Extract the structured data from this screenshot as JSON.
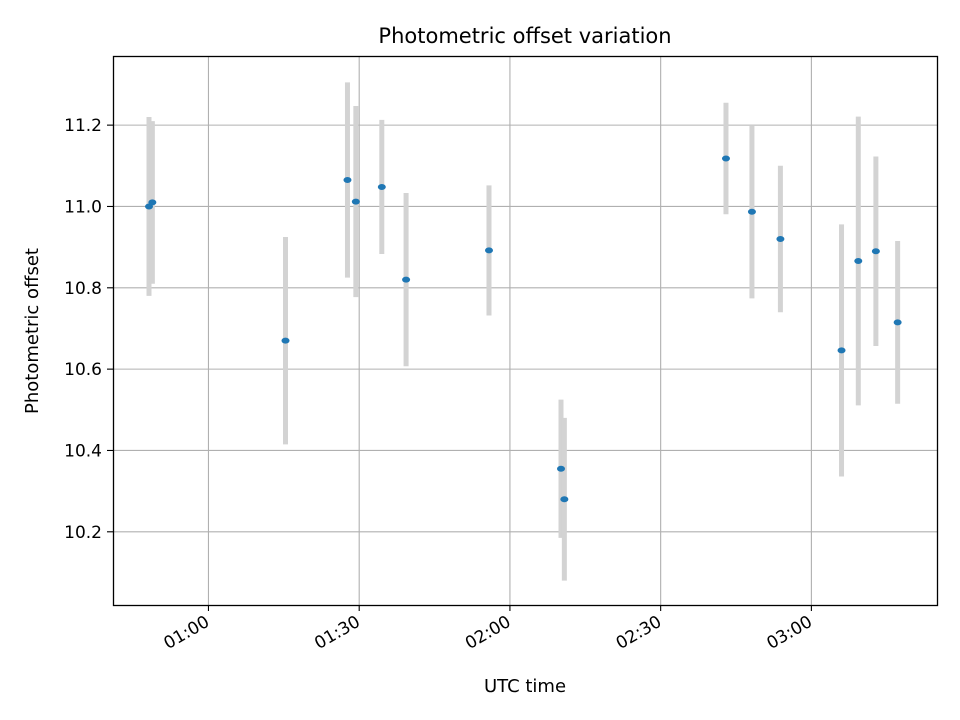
{
  "chart_data": {
    "type": "scatter",
    "title": "Photometric offset variation",
    "xlabel": "UTC time",
    "ylabel": "Photometric offset",
    "xlim": [
      "00:41",
      "03:25"
    ],
    "ylim": [
      10.02,
      11.37
    ],
    "xticks": [
      {
        "value": "01:00",
        "label": "01:00"
      },
      {
        "value": "01:30",
        "label": "01:30"
      },
      {
        "value": "02:00",
        "label": "02:00"
      },
      {
        "value": "02:30",
        "label": "02:30"
      },
      {
        "value": "03:00",
        "label": "03:00"
      }
    ],
    "yticks": [
      {
        "value": 10.2,
        "label": "10.2"
      },
      {
        "value": 10.4,
        "label": "10.4"
      },
      {
        "value": 10.6,
        "label": "10.6"
      },
      {
        "value": 10.8,
        "label": "10.8"
      },
      {
        "value": 11.0,
        "label": "11.0"
      },
      {
        "value": 11.2,
        "label": "11.2"
      }
    ],
    "grid": true,
    "point_color": "#1f77b4",
    "errorbar_color": "#d3d3d3",
    "points": [
      {
        "x": "00:48:10",
        "y": 11.0,
        "yerr": 0.22
      },
      {
        "x": "00:48:50",
        "y": 11.01,
        "yerr": 0.2
      },
      {
        "x": "01:15:20",
        "y": 10.67,
        "yerr": 0.255
      },
      {
        "x": "01:27:40",
        "y": 11.065,
        "yerr": 0.24
      },
      {
        "x": "01:29:20",
        "y": 11.012,
        "yerr": 0.235
      },
      {
        "x": "01:34:30",
        "y": 11.048,
        "yerr": 0.165
      },
      {
        "x": "01:39:20",
        "y": 10.82,
        "yerr": 0.213
      },
      {
        "x": "01:55:50",
        "y": 10.892,
        "yerr": 0.16
      },
      {
        "x": "02:10:10",
        "y": 10.355,
        "yerr": 0.17
      },
      {
        "x": "02:10:50",
        "y": 10.28,
        "yerr": 0.2
      },
      {
        "x": "02:43:00",
        "y": 11.118,
        "yerr": 0.137
      },
      {
        "x": "02:48:10",
        "y": 10.987,
        "yerr": 0.213
      },
      {
        "x": "02:53:50",
        "y": 10.92,
        "yerr": 0.18
      },
      {
        "x": "03:06:00",
        "y": 10.646,
        "yerr": 0.31
      },
      {
        "x": "03:09:20",
        "y": 10.866,
        "yerr": 0.355
      },
      {
        "x": "03:12:50",
        "y": 10.89,
        "yerr": 0.233
      },
      {
        "x": "03:17:10",
        "y": 10.715,
        "yerr": 0.2
      }
    ]
  }
}
